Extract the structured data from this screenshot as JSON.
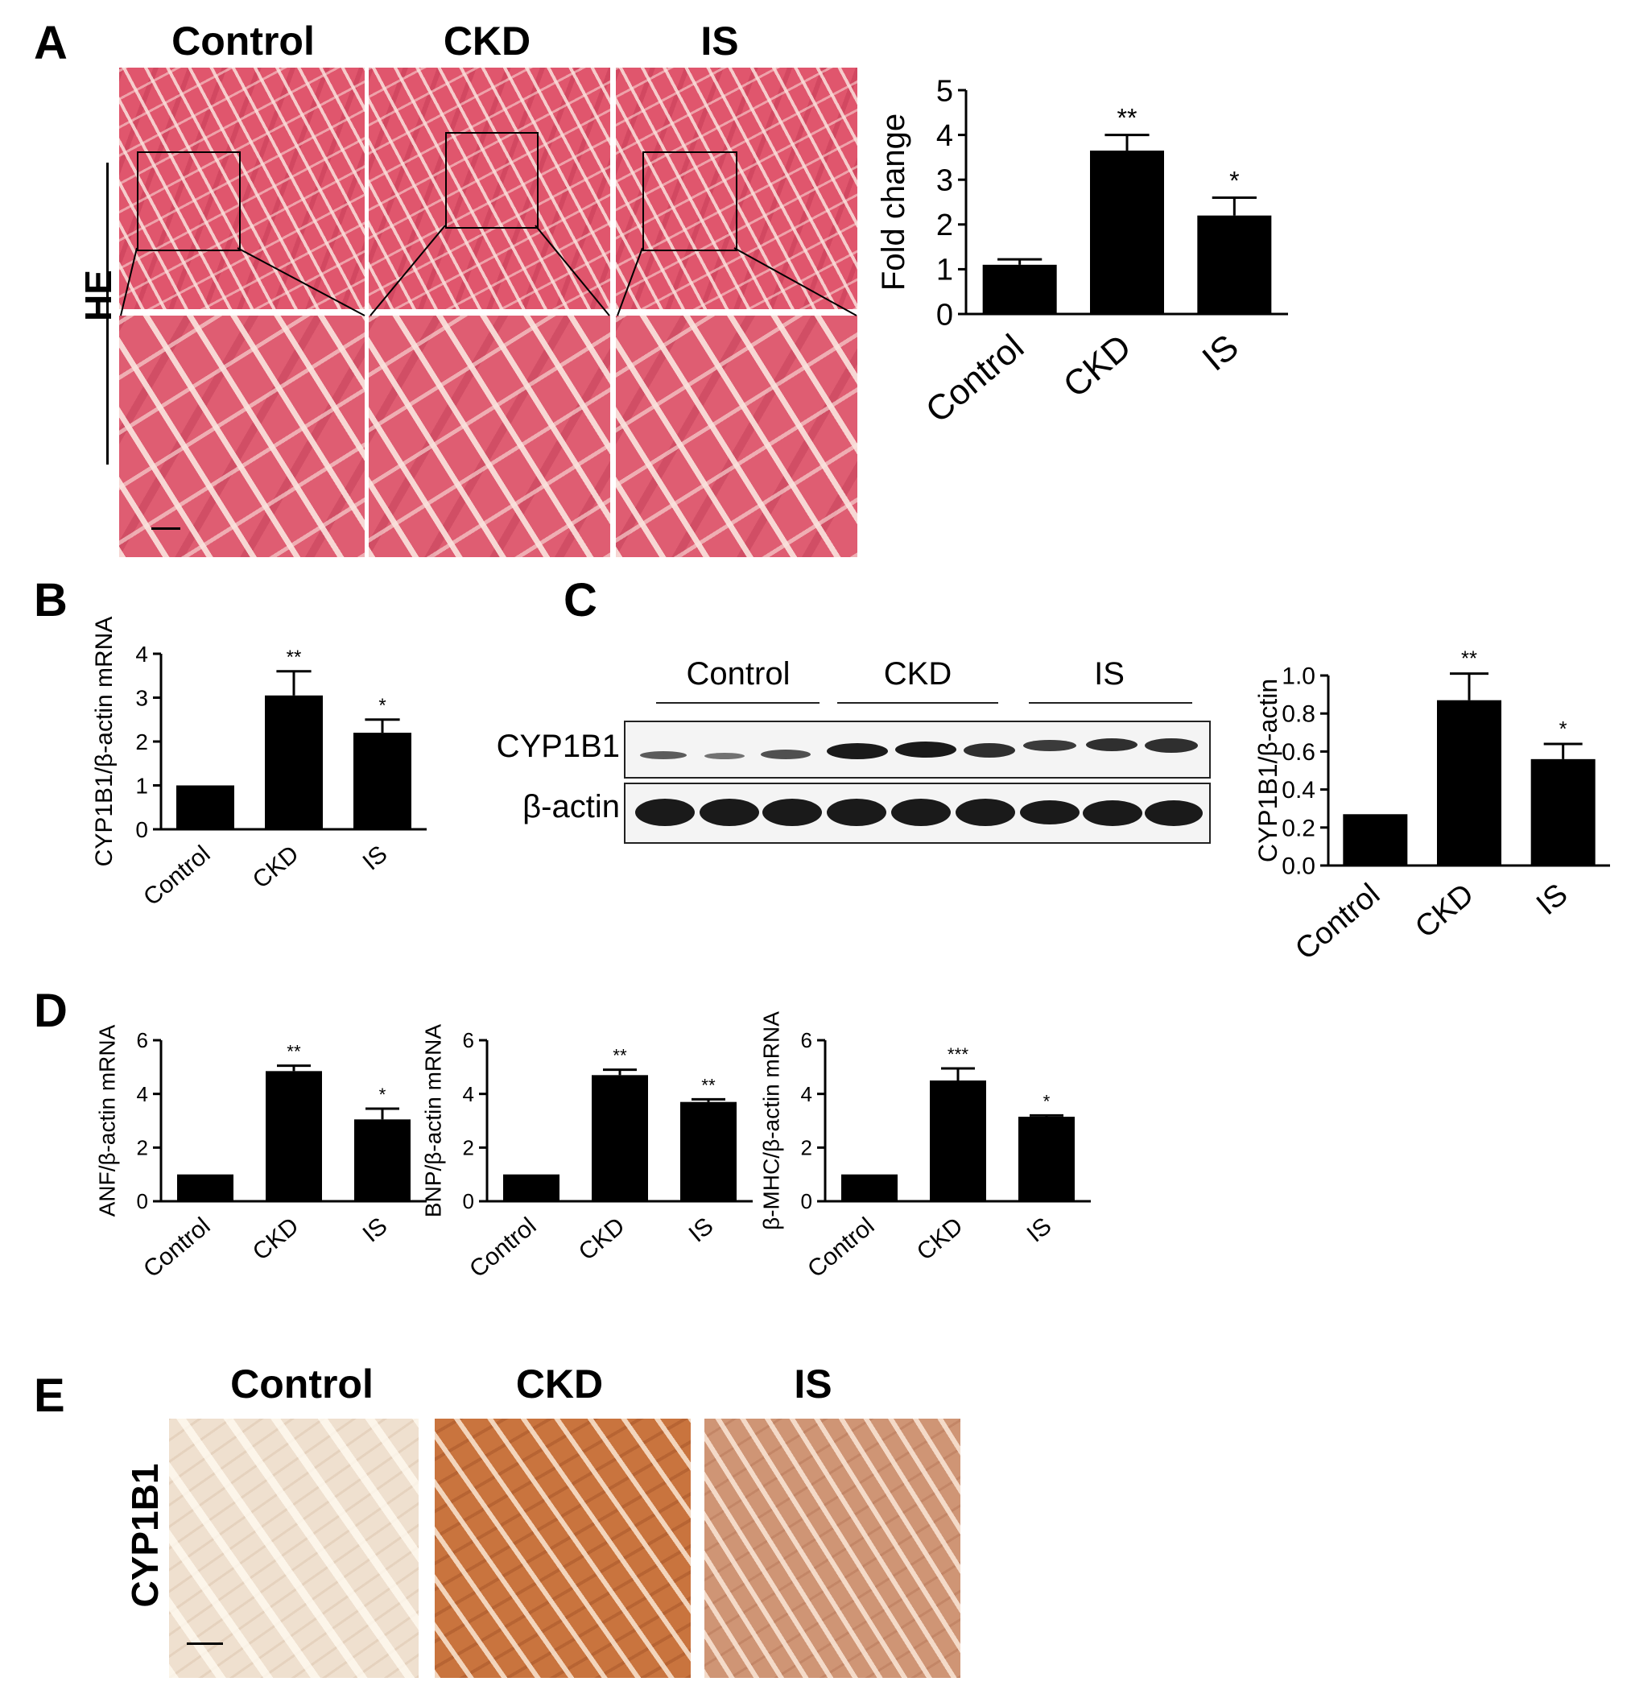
{
  "panels": {
    "a": "A",
    "b": "B",
    "c": "C",
    "d": "D",
    "e": "E"
  },
  "panel_a": {
    "columns": [
      "Control",
      "CKD",
      "IS"
    ],
    "stain_label": "HE"
  },
  "panel_c": {
    "groups": [
      "Control",
      "CKD",
      "IS"
    ],
    "rows": [
      "CYP1B1",
      "β-actin"
    ]
  },
  "panel_e": {
    "columns": [
      "Control",
      "CKD",
      "IS"
    ],
    "stain_label": "CYP1B1"
  },
  "chart_data": [
    {
      "id": "A-chart",
      "type": "bar",
      "categories": [
        "Control",
        "CKD",
        "IS"
      ],
      "values": [
        1.1,
        3.65,
        2.2
      ],
      "errors": [
        0.12,
        0.35,
        0.4
      ],
      "significance": [
        "",
        "**",
        "*"
      ],
      "ylabel": "Fold change",
      "ylim": [
        0,
        5
      ],
      "yticks": [
        "0",
        "1",
        "2",
        "3",
        "4",
        "5"
      ],
      "grid": false
    },
    {
      "id": "B-chart",
      "type": "bar",
      "categories": [
        "Control",
        "CKD",
        "IS"
      ],
      "values": [
        1.0,
        3.05,
        2.2
      ],
      "errors": [
        0.0,
        0.55,
        0.3
      ],
      "significance": [
        "",
        "**",
        "*"
      ],
      "ylabel": "CYP1B1/β-actin mRNA",
      "ylim": [
        0,
        4
      ],
      "yticks": [
        "0",
        "1",
        "2",
        "3",
        "4"
      ],
      "grid": false
    },
    {
      "id": "C-chart",
      "type": "bar",
      "categories": [
        "Control",
        "CKD",
        "IS"
      ],
      "values": [
        0.27,
        0.87,
        0.56
      ],
      "errors": [
        0.0,
        0.14,
        0.08
      ],
      "significance": [
        "",
        "**",
        "*"
      ],
      "ylabel": "CYP1B1/β-actin",
      "ylim": [
        0,
        1.0
      ],
      "yticks": [
        "0.0",
        "0.2",
        "0.4",
        "0.6",
        "0.8",
        "1.0"
      ],
      "grid": false
    },
    {
      "id": "D1-chart",
      "type": "bar",
      "categories": [
        "Control",
        "CKD",
        "IS"
      ],
      "values": [
        1.0,
        4.85,
        3.05
      ],
      "errors": [
        0.0,
        0.2,
        0.4
      ],
      "significance": [
        "",
        "**",
        "*"
      ],
      "ylabel": "ANF/β-actin mRNA",
      "ylim": [
        0,
        6
      ],
      "yticks": [
        "0",
        "2",
        "4",
        "6"
      ],
      "grid": false
    },
    {
      "id": "D2-chart",
      "type": "bar",
      "categories": [
        "Control",
        "CKD",
        "IS"
      ],
      "values": [
        1.0,
        4.7,
        3.7
      ],
      "errors": [
        0.0,
        0.2,
        0.1
      ],
      "significance": [
        "",
        "**",
        "**"
      ],
      "ylabel": "BNP/β-actin mRNA",
      "ylim": [
        0,
        6
      ],
      "yticks": [
        "0",
        "2",
        "4",
        "6"
      ],
      "grid": false
    },
    {
      "id": "D3-chart",
      "type": "bar",
      "categories": [
        "Control",
        "CKD",
        "IS"
      ],
      "values": [
        1.0,
        4.5,
        3.15
      ],
      "errors": [
        0.0,
        0.45,
        0.05
      ],
      "significance": [
        "",
        "***",
        "*"
      ],
      "ylabel": "β-MHC/β-actin mRNA",
      "ylim": [
        0,
        6
      ],
      "yticks": [
        "0",
        "2",
        "4",
        "6"
      ],
      "grid": false
    }
  ]
}
